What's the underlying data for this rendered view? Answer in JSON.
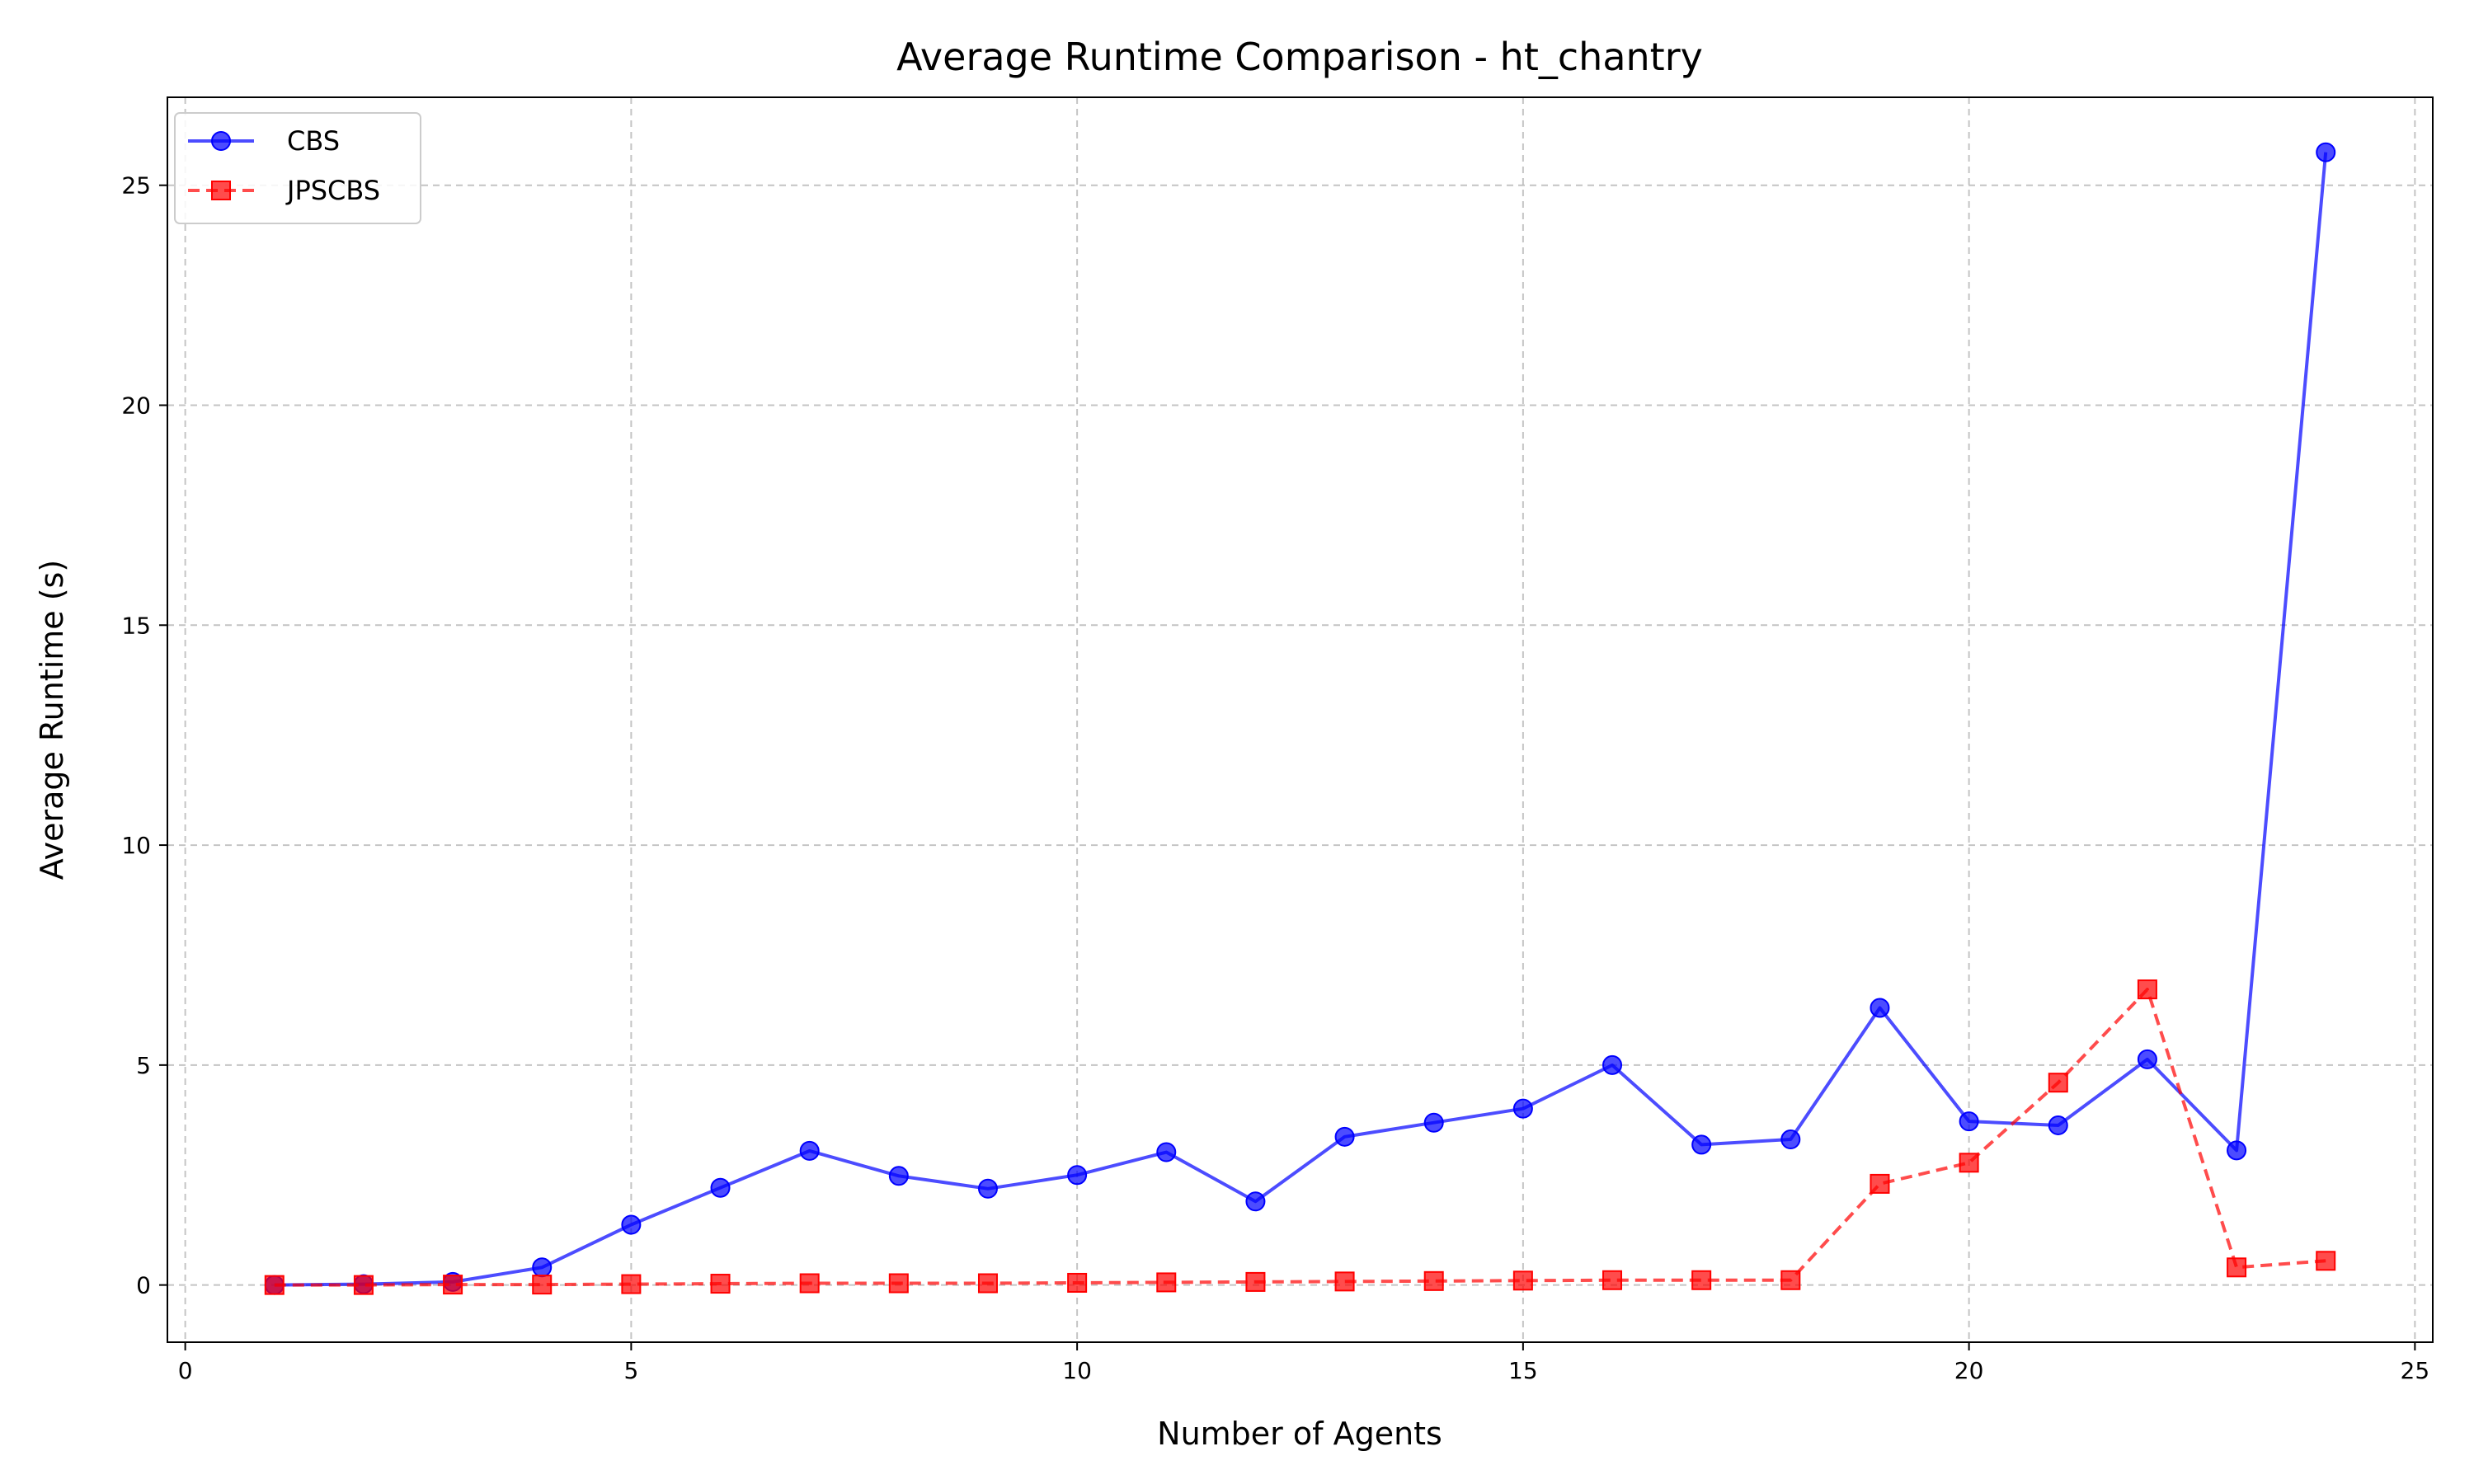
{
  "chart_data": {
    "type": "line",
    "title": "Average Runtime Comparison - ht_chantry",
    "xlabel": "Number of Agents",
    "ylabel": "Average Runtime (s)",
    "xlim": [
      -0.2,
      25.2
    ],
    "ylim": [
      -1.3,
      27.0
    ],
    "xticks": [
      0,
      5,
      10,
      15,
      20,
      25
    ],
    "yticks": [
      0,
      5,
      10,
      15,
      20,
      25
    ],
    "grid": true,
    "legend_position": "top-left",
    "x": [
      1,
      2,
      3,
      4,
      5,
      6,
      7,
      8,
      9,
      10,
      11,
      12,
      13,
      14,
      15,
      16,
      17,
      18,
      19,
      20,
      21,
      22,
      23,
      24
    ],
    "series": [
      {
        "name": "CBS",
        "color": "#0000ff",
        "line_style": "solid",
        "marker": "circle",
        "values": [
          0.0,
          0.02,
          0.07,
          0.4,
          1.37,
          2.21,
          3.05,
          2.48,
          2.19,
          2.5,
          3.02,
          1.9,
          3.37,
          3.69,
          4.01,
          5.0,
          3.19,
          3.31,
          6.3,
          3.72,
          3.63,
          5.13,
          3.06,
          25.75
        ]
      },
      {
        "name": "JPSCBS",
        "color": "#ff0000",
        "line_style": "dashed",
        "marker": "square",
        "values": [
          0.0,
          0.0,
          0.01,
          0.01,
          0.02,
          0.03,
          0.04,
          0.04,
          0.04,
          0.05,
          0.06,
          0.07,
          0.08,
          0.09,
          0.1,
          0.11,
          0.11,
          0.11,
          2.3,
          2.78,
          4.6,
          6.72,
          0.4,
          0.55
        ]
      }
    ]
  }
}
